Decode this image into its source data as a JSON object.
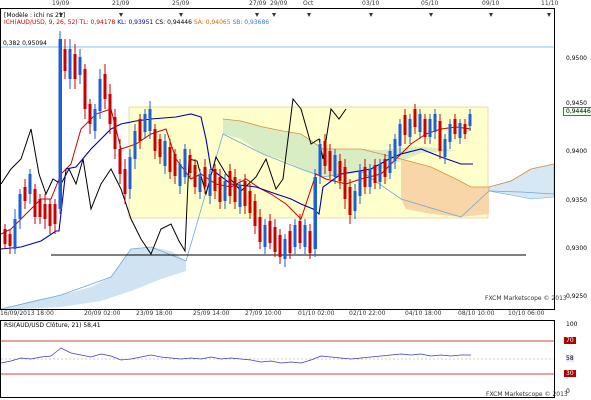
{
  "chart": {
    "top_date_labels": [
      "19/09",
      "21/09",
      "25/09",
      "27/09",
      "29/09",
      "Oct",
      "03/10",
      "05/10",
      "09/10",
      "11/10"
    ],
    "bottom_time_labels": [
      "16/09/2013 18:00",
      "20/09 02:00",
      "23/09 18:00",
      "25/09 14:00",
      "27/09 10:00",
      "01/10 02:00",
      "02/10 22:00",
      "04/10 18:00",
      "08/10 10:00",
      "10/10 06:00"
    ],
    "y_tick_labels": [
      "0,9500",
      "0,9450",
      "0,9400",
      "0,9350",
      "0,9300",
      "0,9250"
    ],
    "fib_label": "0,382 0,95094",
    "legend_model": "[Modèle : ichi ns 21]",
    "legend_items": [
      {
        "label": "ICH(AUD/USD, 9, 26, 52)",
        "color": "#cc0000"
      },
      {
        "label": "TL: 0,94178",
        "color": "#cc0000"
      },
      {
        "label": "KL: 0,93951",
        "color": "#0000aa"
      },
      {
        "label": "CS: 0,94446",
        "color": "#000000"
      },
      {
        "label": "SA: 0,94065",
        "color": "#d46a00"
      },
      {
        "label": "SB: 0,93686",
        "color": "#3a7bd5"
      }
    ],
    "last_price_label": "0,94446",
    "watermark": "FXCM Marketscope © 2013",
    "colors": {
      "up": "#1f5fd6",
      "down": "#cc0000",
      "tenkan": "#cc0000",
      "kijun": "#0000aa",
      "chikou": "#000000",
      "span_a": "#e08a3c",
      "span_b": "#6ea9d8",
      "box": "#ffffcc"
    }
  },
  "chart_data": {
    "type": "candlestick",
    "title": "",
    "y_range": [
      0.9225,
      0.9545
    ],
    "last_price": 0.94446,
    "fib_level": 0.95094,
    "series": [
      {
        "name": "TL",
        "value": 0.94178
      },
      {
        "name": "KL",
        "value": 0.93951
      },
      {
        "name": "CS",
        "value": 0.94446
      },
      {
        "name": "SA",
        "value": 0.94065
      },
      {
        "name": "SB",
        "value": 0.93686
      }
    ]
  },
  "rsi": {
    "legend": "RSI(AUD/USD Clôture, 21) 58,41",
    "value": 58.41,
    "right_labels": [
      "100",
      "70",
      "58",
      "30",
      "0"
    ],
    "levels": [
      70,
      30
    ],
    "watermark": "FXCM Marketscope © 2013"
  }
}
